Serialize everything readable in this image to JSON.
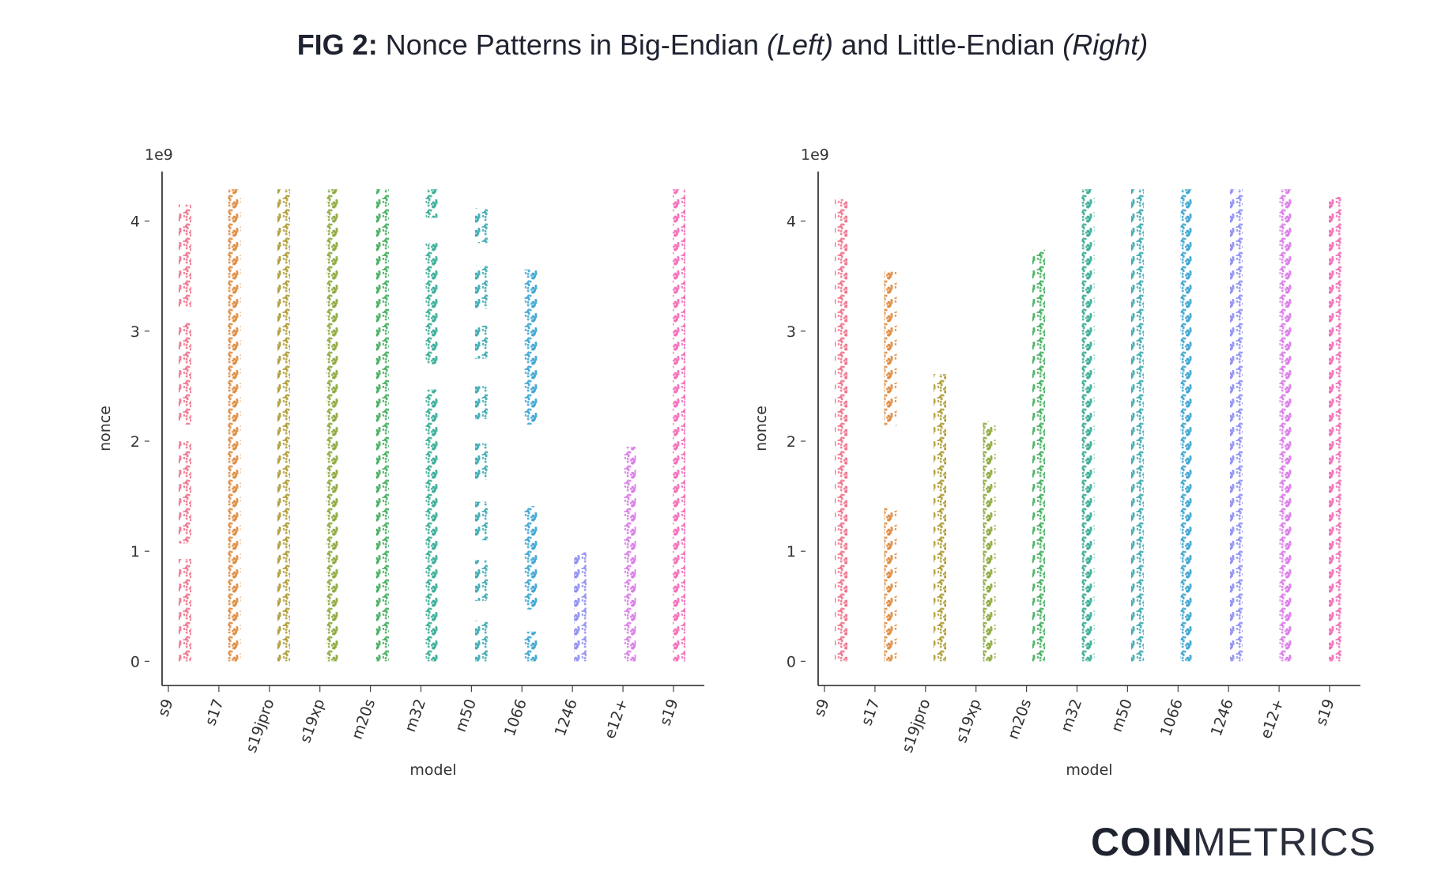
{
  "title_parts": [
    "FIG 2:",
    "Nonce Patterns in Big-Endian",
    "(Left)",
    "and Little-Endian",
    "(Right)"
  ],
  "logo": [
    "COIN",
    "METRICS"
  ],
  "chart_data": [
    {
      "type": "strip",
      "xlabel": "model",
      "ylabel": "nonce",
      "offset_label": "1e9",
      "categories": [
        "s9",
        "s17",
        "s19jpro",
        "s19xp",
        "m20s",
        "m32",
        "m50",
        "1066",
        "1246",
        "e12+",
        "s19"
      ],
      "colors": [
        "#f0718a",
        "#de8a3c",
        "#ad9a2e",
        "#8aa83a",
        "#3fae5a",
        "#36ab94",
        "#38a9b0",
        "#3ba3d0",
        "#8d8ef0",
        "#d97ae6",
        "#f26ab8"
      ],
      "ranges": [
        [
          [
            0,
            0.93
          ],
          [
            1.07,
            2.0
          ],
          [
            2.15,
            3.08
          ],
          [
            3.22,
            4.15
          ]
        ],
        [
          [
            0,
            4.29
          ]
        ],
        [
          [
            0,
            4.29
          ]
        ],
        [
          [
            0,
            4.29
          ]
        ],
        [
          [
            0,
            4.29
          ]
        ],
        [
          [
            0,
            2.47
          ],
          [
            2.7,
            3.8
          ],
          [
            4.03,
            4.29
          ]
        ],
        [
          [
            0,
            0.37
          ],
          [
            0.55,
            0.92
          ],
          [
            1.1,
            1.45
          ],
          [
            1.65,
            1.98
          ],
          [
            2.2,
            2.5
          ],
          [
            2.75,
            3.05
          ],
          [
            3.2,
            3.6
          ],
          [
            3.8,
            4.12
          ]
        ],
        [
          [
            0,
            0.27
          ],
          [
            0.47,
            1.41
          ],
          [
            2.15,
            3.56
          ]
        ],
        [
          [
            0,
            0.99
          ]
        ],
        [
          [
            0,
            1.95
          ]
        ],
        [
          [
            0,
            4.29
          ]
        ]
      ],
      "ylim": [
        -0.22,
        4.45
      ],
      "yticks": [
        0,
        1,
        2,
        3,
        4
      ]
    },
    {
      "type": "strip",
      "xlabel": "model",
      "ylabel": "nonce",
      "offset_label": "1e9",
      "categories": [
        "s9",
        "s17",
        "s19jpro",
        "s19xp",
        "m20s",
        "m32",
        "m50",
        "1066",
        "1246",
        "e12+",
        "s19"
      ],
      "colors": [
        "#f0718a",
        "#de8a3c",
        "#ad9a2e",
        "#8aa83a",
        "#3fae5a",
        "#36ab94",
        "#38a9b0",
        "#3ba3d0",
        "#8d8ef0",
        "#d97ae6",
        "#f26ab8"
      ],
      "ranges": [
        [
          [
            0,
            4.2
          ]
        ],
        [
          [
            0,
            1.4
          ],
          [
            2.14,
            3.54
          ]
        ],
        [
          [
            0,
            2.61
          ]
        ],
        [
          [
            0,
            2.18
          ]
        ],
        [
          [
            0,
            3.74
          ]
        ],
        [
          [
            0,
            4.29
          ]
        ],
        [
          [
            0,
            4.29
          ]
        ],
        [
          [
            0,
            4.29
          ]
        ],
        [
          [
            0,
            4.29
          ]
        ],
        [
          [
            0,
            4.29
          ]
        ],
        [
          [
            0,
            4.22
          ]
        ]
      ],
      "ylim": [
        -0.22,
        4.45
      ],
      "yticks": [
        0,
        1,
        2,
        3,
        4
      ]
    }
  ]
}
